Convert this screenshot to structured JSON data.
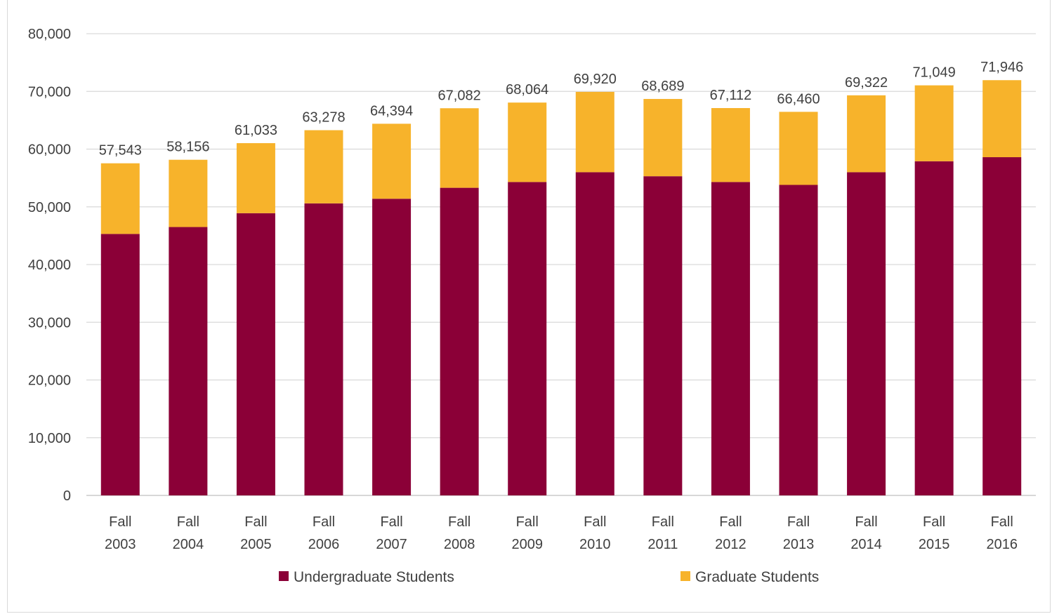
{
  "chart_data": {
    "type": "bar",
    "stacked": true,
    "categories": [
      [
        "Fall",
        "2003"
      ],
      [
        "Fall",
        "2004"
      ],
      [
        "Fall",
        "2005"
      ],
      [
        "Fall",
        "2006"
      ],
      [
        "Fall",
        "2007"
      ],
      [
        "Fall",
        "2008"
      ],
      [
        "Fall",
        "2009"
      ],
      [
        "Fall",
        "2010"
      ],
      [
        "Fall",
        "2011"
      ],
      [
        "Fall",
        "2012"
      ],
      [
        "Fall",
        "2013"
      ],
      [
        "Fall",
        "2014"
      ],
      [
        "Fall",
        "2015"
      ],
      [
        "Fall",
        "2016"
      ]
    ],
    "series": [
      {
        "name": "Undergraduate Students",
        "color": "#8b0037",
        "values": [
          45300,
          46500,
          48900,
          50600,
          51400,
          53300,
          54300,
          56000,
          55300,
          54300,
          53800,
          56000,
          57900,
          58600
        ]
      },
      {
        "name": "Graduate Students",
        "color": "#f7b32b",
        "values": [
          12243,
          11656,
          12133,
          12678,
          12994,
          13782,
          13764,
          13920,
          13389,
          12812,
          12660,
          13322,
          13149,
          13346
        ]
      }
    ],
    "totals_labels": [
      "57,543",
      "58,156",
      "61,033",
      "63,278",
      "64,394",
      "67,082",
      "68,064",
      "69,920",
      "68,689",
      "67,112",
      "66,460",
      "69,322",
      "71,049",
      "71,946"
    ],
    "totals": [
      57543,
      58156,
      61033,
      63278,
      64394,
      67082,
      68064,
      69920,
      68689,
      67112,
      66460,
      69322,
      71049,
      71946
    ],
    "y_ticks": [
      "0",
      "10,000",
      "20,000",
      "30,000",
      "40,000",
      "50,000",
      "60,000",
      "70,000",
      "80,000"
    ],
    "ylim": [
      0,
      80000
    ],
    "grid": true,
    "legend_position": "bottom",
    "xlabel": "",
    "ylabel": ""
  }
}
